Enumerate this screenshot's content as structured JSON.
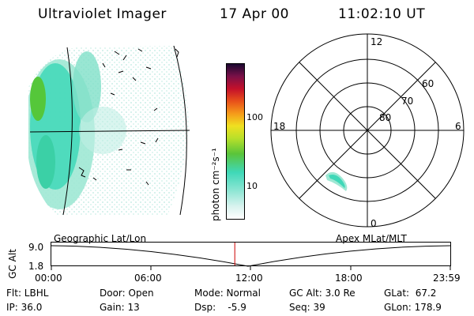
{
  "header": {
    "title": "Ultraviolet Imager",
    "date": "17 Apr 00",
    "time": "11:02:10 UT"
  },
  "colorbar": {
    "label": "photon cm⁻²s⁻¹",
    "ticks": [
      "100",
      "10"
    ],
    "scale": "log"
  },
  "polar": {
    "mlt_labels": {
      "top": "12",
      "left": "18",
      "right": "6",
      "bottom": "0"
    },
    "lat_labels": [
      "60",
      "70",
      "80"
    ]
  },
  "timeline": {
    "left_title": "Geographic Lat/Lon",
    "right_title": "Apex MLat/MLT",
    "y_axis_label": "GC Alt",
    "y_ticks": [
      "9.0",
      "1.8"
    ],
    "x_ticks": [
      "00:00",
      "06:00",
      "12:00",
      "18:00",
      "23:59"
    ],
    "current_time_fraction": 0.4598
  },
  "info": {
    "flt": "Flt: LBHL",
    "ip": "IP: 36.0",
    "door": "Door: Open",
    "gain": "Gain: 13",
    "mode": "Mode: Normal",
    "dsp": "Dsp:    -5.9",
    "gcalt": "GC Alt: 3.0 Re",
    "seq": "Seq: 39",
    "glat": "GLat:  67.2",
    "glon": "GLon: 178.9"
  },
  "colors": {
    "marker": "#cc0000",
    "emission_low": "#9fe8d4",
    "emission_mid": "#3fd8b8",
    "emission_high": "#55c73a"
  }
}
